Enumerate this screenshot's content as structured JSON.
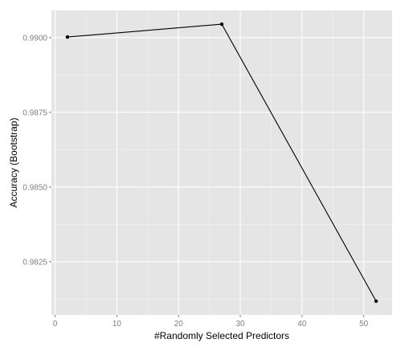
{
  "chart_data": {
    "type": "line",
    "title": "",
    "xlabel": "#Randomly Selected Predictors",
    "ylabel": "Accuracy (Bootstrap)",
    "x": [
      2,
      27,
      52
    ],
    "series": [
      {
        "values": [
          0.99002,
          0.99045,
          0.98118
        ]
      }
    ],
    "xlim": [
      -0.6,
      54.6
    ],
    "ylim": [
      0.98072,
      0.99091
    ],
    "x_ticks": [
      0,
      10,
      20,
      30,
      40,
      50
    ],
    "x_tick_labels": [
      "0",
      "10",
      "20",
      "30",
      "40",
      "50"
    ],
    "y_ticks": [
      0.9825,
      0.985,
      0.9875,
      0.99
    ],
    "y_tick_labels": [
      "0.9825",
      "0.9850",
      "0.9875",
      "0.9900"
    ],
    "grid": true,
    "colors": {
      "panel_background": "#e5e5e5",
      "grid_major": "#ffffff",
      "grid_minor": "#f2f2f2",
      "line": "#000000",
      "tick_text": "#7f7f7f"
    }
  }
}
